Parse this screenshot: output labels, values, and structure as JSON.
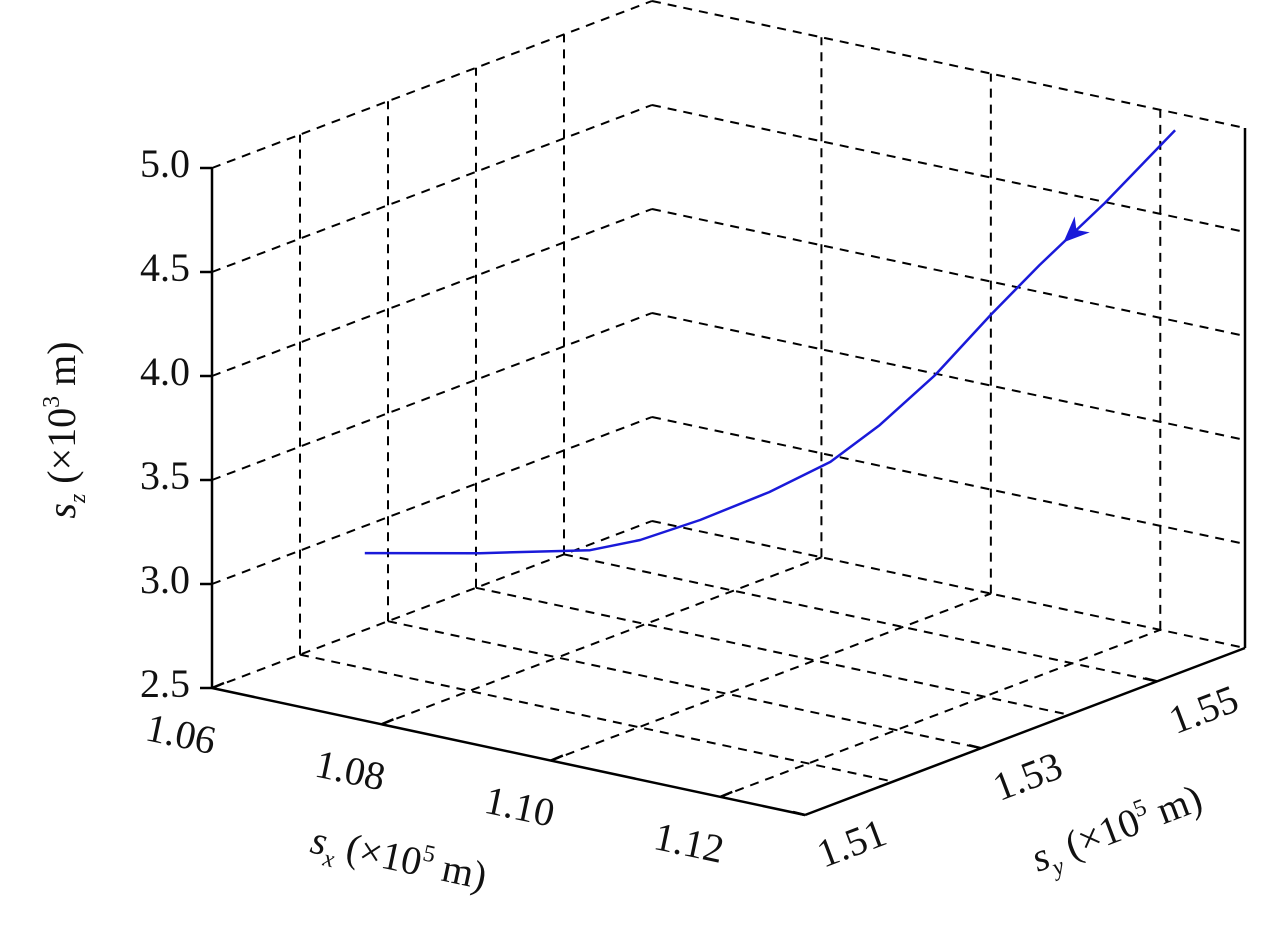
{
  "chart_data": {
    "type": "line3d",
    "xlabel": [
      "s",
      "x",
      " (×10",
      "5",
      " m)"
    ],
    "ylabel": [
      "s",
      "y",
      " (×10",
      "5",
      " m)"
    ],
    "zlabel": [
      "s",
      "z",
      " (×10",
      "3",
      " m)"
    ],
    "xlim": [
      1.06,
      1.13
    ],
    "ylim": [
      1.51,
      1.56
    ],
    "zlim": [
      2.5,
      5.0
    ],
    "xticks": [
      1.06,
      1.08,
      {
        "value": 1.1,
        "label": "1.10"
      },
      1.12
    ],
    "yticks": [
      1.51,
      1.53,
      1.55
    ],
    "yminor": [
      1.52,
      1.54
    ],
    "zticks": [
      2.5,
      {
        "value": 3.0,
        "label": "3.0"
      },
      3.5,
      {
        "value": 4.0,
        "label": "4.0"
      },
      4.5,
      {
        "value": 5.0,
        "label": "5.0"
      }
    ],
    "grid": true,
    "series": [
      {
        "color": "#1a1ad9",
        "x": [
          1.1231,
          1.1178,
          1.1128,
          1.1087,
          1.1061,
          1.1036,
          1.101,
          1.097,
          1.0932,
          1.0906,
          1.088,
          1.0803,
          1.0716
        ],
        "y": [
          1.5587,
          1.5558,
          1.5532,
          1.5516,
          1.5478,
          1.5439,
          1.5408,
          1.5377,
          1.5335,
          1.5292,
          1.526,
          1.5209,
          1.5162
        ],
        "z": [
          4.95,
          4.6,
          4.3,
          4.05,
          3.8,
          3.6,
          3.45,
          3.32,
          3.22,
          3.17,
          3.15,
          3.15,
          3.15
        ]
      }
    ]
  }
}
